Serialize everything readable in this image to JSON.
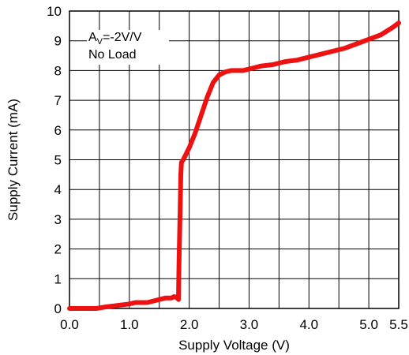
{
  "chart_data": {
    "type": "line",
    "xlabel": "Supply Voltage (V)",
    "ylabel": "Supply Current (mA)",
    "xlim": [
      0,
      5.5
    ],
    "ylim": [
      0,
      10
    ],
    "x_ticks": [
      0,
      1,
      2,
      3,
      4,
      5,
      5.5
    ],
    "x_tick_labels": [
      "0.0",
      "1.0",
      "2.0",
      "3.0",
      "4.0",
      "5.0",
      "5.5"
    ],
    "y_ticks": [
      0,
      1,
      2,
      3,
      4,
      5,
      6,
      7,
      8,
      9,
      10
    ],
    "y_tick_labels": [
      "0",
      "1",
      "2",
      "3",
      "4",
      "5",
      "6",
      "7",
      "8",
      "9",
      "10"
    ],
    "grid": true,
    "series_color": "#ee1111",
    "annotation": {
      "line1_main": "A",
      "line1_sub": "V",
      "line1_rest": "=-2V/V",
      "line2": "No Load"
    },
    "series": [
      {
        "x": [
          0.0,
          0.2,
          0.45,
          0.6,
          0.8,
          1.0,
          1.1,
          1.2,
          1.3,
          1.4,
          1.5,
          1.6,
          1.7,
          1.75,
          1.8,
          1.82,
          1.83,
          1.84,
          1.85,
          1.86,
          1.87,
          1.88,
          1.9,
          1.95,
          2.0,
          2.1,
          2.2,
          2.3,
          2.4,
          2.5,
          2.55,
          2.6,
          2.7,
          2.8,
          2.9,
          3.0,
          3.1,
          3.2,
          3.4,
          3.6,
          3.8,
          4.0,
          4.2,
          4.4,
          4.6,
          4.8,
          5.0,
          5.2,
          5.4,
          5.5
        ],
        "y": [
          0.0,
          0.0,
          0.0,
          0.05,
          0.1,
          0.15,
          0.2,
          0.2,
          0.2,
          0.25,
          0.3,
          0.35,
          0.35,
          0.4,
          0.35,
          0.3,
          1.5,
          2.5,
          3.5,
          4.5,
          4.9,
          4.95,
          5.0,
          5.2,
          5.4,
          5.9,
          6.5,
          7.1,
          7.6,
          7.85,
          7.9,
          7.95,
          8.0,
          8.0,
          8.0,
          8.05,
          8.1,
          8.15,
          8.2,
          8.3,
          8.35,
          8.45,
          8.55,
          8.65,
          8.75,
          8.9,
          9.05,
          9.2,
          9.45,
          9.6
        ]
      }
    ]
  }
}
